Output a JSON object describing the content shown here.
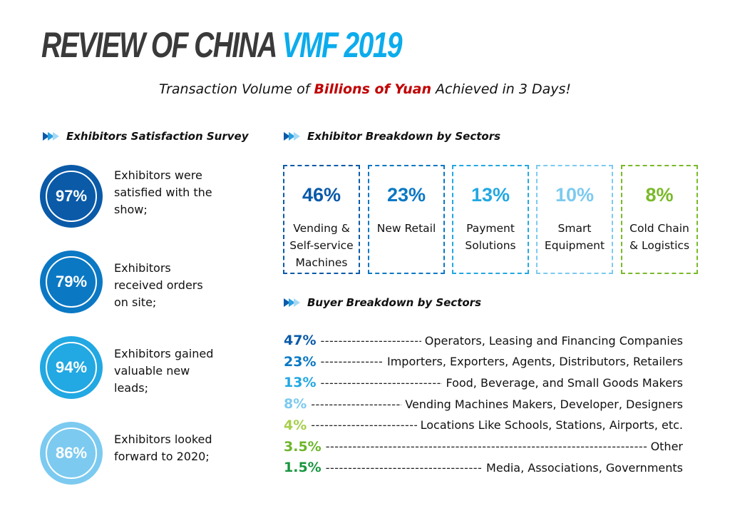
{
  "title": {
    "main": "REVIEW OF CHINA ",
    "highlight": "VMF 2019"
  },
  "subtitle": {
    "before": "Transaction Volume of ",
    "highlight": "Billions of Yuan",
    "after": " Achieved in 3 Days!"
  },
  "satisfaction": {
    "heading": "Exhibitors Satisfaction Survey",
    "items": [
      {
        "value": "97%",
        "text": "Exhibitors were satisfied with the show;",
        "color": "#0a5aa8"
      },
      {
        "value": "79%",
        "text": "Exhibitors received orders on site;",
        "color": "#0b78c4"
      },
      {
        "value": "94%",
        "text": "Exhibitors gained valuable new leads;",
        "color": "#22a8e2"
      },
      {
        "value": "86%",
        "text": "Exhibitors looked forward to 2020;",
        "color": "#7ccaf0"
      }
    ]
  },
  "exhibitor_sectors": {
    "heading": "Exhibitor Breakdown by Sectors",
    "items": [
      {
        "value": "46%",
        "label": "Vending & Self-service Machines",
        "color": "#0a5aa8"
      },
      {
        "value": "23%",
        "label": "New Retail",
        "color": "#0b78c4"
      },
      {
        "value": "13%",
        "label": "Payment Solutions",
        "color": "#22a8e2"
      },
      {
        "value": "10%",
        "label": "Smart Equipment",
        "color": "#7ccaf0"
      },
      {
        "value": "8%",
        "label": "Cold Chain & Logistics",
        "color": "#7ab92a"
      }
    ]
  },
  "buyer_sectors": {
    "heading": "Buyer Breakdown by Sectors",
    "items": [
      {
        "value": "47%",
        "label": "Operators, Leasing and Financing Companies",
        "color": "#0a5aa8"
      },
      {
        "value": "23%",
        "label": "Importers, Exporters, Agents, Distributors, Retailers",
        "color": "#0b78c4"
      },
      {
        "value": "13%",
        "label": "Food, Beverage, and Small Goods Makers",
        "color": "#22a8e2"
      },
      {
        "value": "8%",
        "label": "Vending Machines Makers, Developer, Designers",
        "color": "#7ccaf0"
      },
      {
        "value": "4%",
        "label": "Locations Like Schools, Stations, Airports, etc.",
        "color": "#a6cf4a"
      },
      {
        "value": "3.5%",
        "label": "Other",
        "color": "#6db52a"
      },
      {
        "value": "1.5%",
        "label": "Media, Associations, Governments",
        "color": "#1a9640"
      }
    ]
  }
}
